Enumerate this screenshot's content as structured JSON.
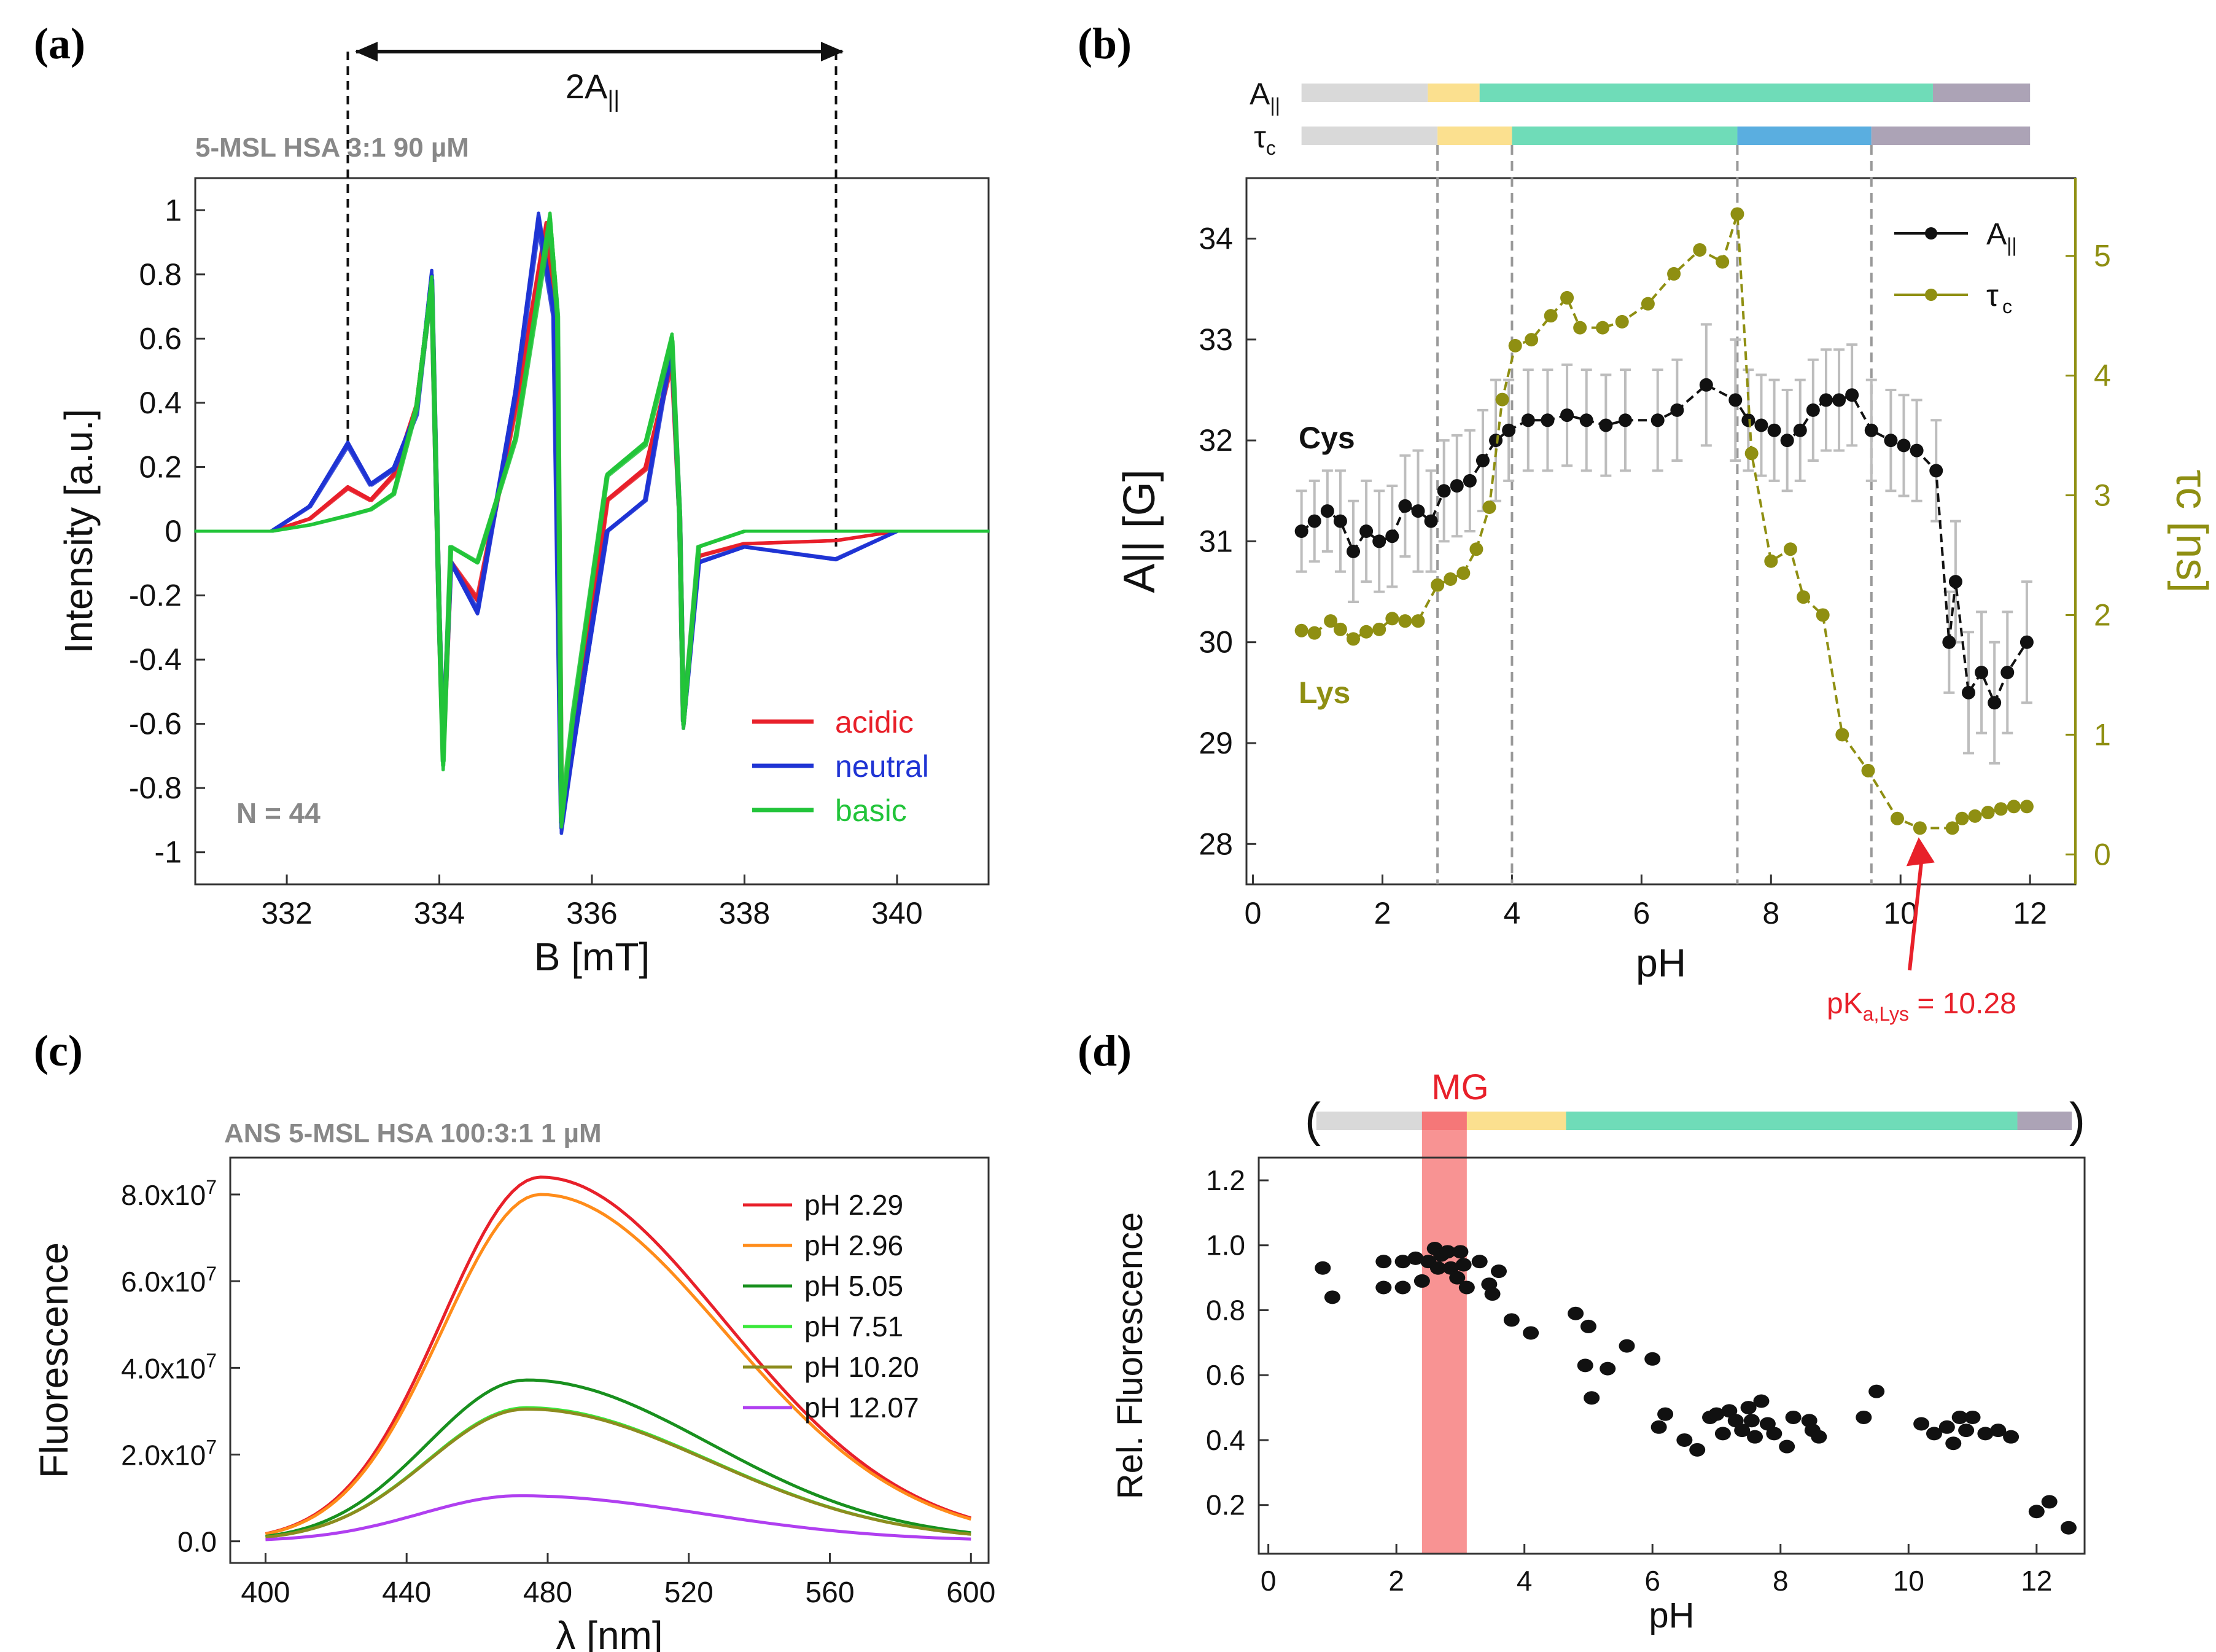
{
  "panel_a": {
    "label": "(a)",
    "annotation": "2A",
    "annotation_sub": "||",
    "sample": "5-MSL HSA 3:1  90 µM",
    "count": "N = 44"
  },
  "panel_b": {
    "label": "(b)",
    "bar_label_a": "A",
    "bar_label_a_sub": "||",
    "bar_label_t": "τ",
    "bar_label_t_sub": "c",
    "label_cys": "Cys",
    "label_lys": "Lys",
    "pka": "pK",
    "pka_sub": "a,Lys",
    "pka_value": " = 10.28"
  },
  "panel_c": {
    "label": "(c)",
    "sample": "ANS 5-MSL HSA 100:3:1  1 µM"
  },
  "panel_d": {
    "label": "(d)",
    "mg_label": "MG",
    "paren_open": "(",
    "paren_close": ")"
  },
  "colors": {
    "gray": "#d9d9d9",
    "yellow": "#fbe08f",
    "teal": "#6fdcb8",
    "blue": "#5aaee0",
    "purple": "#aca3b6",
    "red": "#e8202a",
    "blue_line": "#1f34d4",
    "green": "#22c43a",
    "olive": "#8f8f12",
    "black": "#111111"
  },
  "chart_data": [
    {
      "id": "a",
      "type": "line",
      "title": "",
      "xlabel": "B [mT]",
      "ylabel": "Intensity [a.u.]",
      "xlim": [
        330.8,
        341.2
      ],
      "ylim": [
        -1.1,
        1.1
      ],
      "xticks": [
        332,
        334,
        336,
        338,
        340
      ],
      "yticks": [
        1,
        0.8,
        0.6,
        0.4,
        0.2,
        0,
        -0.2,
        -0.4,
        -0.6,
        -0.8,
        -1
      ],
      "legend": [
        "acidic",
        "neutral",
        "basic"
      ],
      "legend_position": "bottom-right",
      "dashed_markers_x": [
        332.8,
        339.2
      ],
      "series": [
        {
          "name": "acidic",
          "color": "#e8202a",
          "points": [
            [
              330.8,
              0.0
            ],
            [
              331.8,
              0.0
            ],
            [
              332.3,
              0.04
            ],
            [
              332.8,
              0.14
            ],
            [
              333.1,
              0.1
            ],
            [
              333.4,
              0.18
            ],
            [
              333.7,
              0.4
            ],
            [
              333.9,
              0.8
            ],
            [
              334.0,
              -0.3
            ],
            [
              334.05,
              -0.72
            ],
            [
              334.15,
              -0.1
            ],
            [
              334.5,
              -0.22
            ],
            [
              335.0,
              0.4
            ],
            [
              335.4,
              0.97
            ],
            [
              335.55,
              0.6
            ],
            [
              335.6,
              -0.93
            ],
            [
              335.75,
              -0.7
            ],
            [
              336.2,
              0.1
            ],
            [
              336.7,
              0.2
            ],
            [
              337.05,
              0.55
            ],
            [
              337.15,
              0.05
            ],
            [
              337.2,
              -0.62
            ],
            [
              337.4,
              -0.08
            ],
            [
              338.0,
              -0.04
            ],
            [
              339.2,
              -0.03
            ],
            [
              340.0,
              0.0
            ],
            [
              341.2,
              0.0
            ]
          ]
        },
        {
          "name": "neutral",
          "color": "#1f34d4",
          "points": [
            [
              330.8,
              0.0
            ],
            [
              331.8,
              0.0
            ],
            [
              332.3,
              0.08
            ],
            [
              332.8,
              0.28
            ],
            [
              333.1,
              0.15
            ],
            [
              333.4,
              0.2
            ],
            [
              333.7,
              0.38
            ],
            [
              333.9,
              0.82
            ],
            [
              334.0,
              -0.3
            ],
            [
              334.05,
              -0.7
            ],
            [
              334.15,
              -0.1
            ],
            [
              334.5,
              -0.26
            ],
            [
              335.0,
              0.45
            ],
            [
              335.3,
              1.0
            ],
            [
              335.5,
              0.7
            ],
            [
              335.6,
              -0.95
            ],
            [
              335.75,
              -0.7
            ],
            [
              336.2,
              0.0
            ],
            [
              336.7,
              0.1
            ],
            [
              337.05,
              0.6
            ],
            [
              337.15,
              0.05
            ],
            [
              337.2,
              -0.62
            ],
            [
              337.4,
              -0.1
            ],
            [
              338.0,
              -0.05
            ],
            [
              339.2,
              -0.09
            ],
            [
              340.0,
              0.0
            ],
            [
              341.2,
              0.0
            ]
          ]
        },
        {
          "name": "basic",
          "color": "#22c43a",
          "points": [
            [
              330.8,
              0.0
            ],
            [
              331.8,
              0.0
            ],
            [
              332.3,
              0.02
            ],
            [
              332.8,
              0.05
            ],
            [
              333.1,
              0.07
            ],
            [
              333.4,
              0.12
            ],
            [
              333.7,
              0.4
            ],
            [
              333.9,
              0.8
            ],
            [
              334.0,
              -0.3
            ],
            [
              334.05,
              -0.75
            ],
            [
              334.15,
              -0.05
            ],
            [
              334.5,
              -0.1
            ],
            [
              335.0,
              0.3
            ],
            [
              335.45,
              1.0
            ],
            [
              335.55,
              0.7
            ],
            [
              335.6,
              -0.93
            ],
            [
              335.75,
              -0.6
            ],
            [
              336.2,
              0.18
            ],
            [
              336.7,
              0.28
            ],
            [
              337.05,
              0.62
            ],
            [
              337.15,
              0.05
            ],
            [
              337.2,
              -0.62
            ],
            [
              337.4,
              -0.05
            ],
            [
              338.0,
              0.0
            ],
            [
              339.2,
              0.0
            ],
            [
              340.0,
              0.0
            ],
            [
              341.2,
              0.0
            ]
          ]
        }
      ]
    },
    {
      "id": "b",
      "type": "line",
      "xlabel": "pH",
      "ylabel": "A|| [G]",
      "ylabel2": "τc [ns]",
      "xlim": [
        -0.1,
        12.7
      ],
      "ylim": [
        27.6,
        34.6
      ],
      "ylim2": [
        -0.25,
        5.65
      ],
      "xticks": [
        0,
        2,
        4,
        6,
        8,
        10,
        12
      ],
      "yticks": [
        28,
        29,
        30,
        31,
        32,
        33,
        34
      ],
      "yticks2": [
        0,
        1,
        2,
        3,
        4,
        5
      ],
      "legend": [
        "A||",
        "τc"
      ],
      "legend_position": "top-right",
      "vlines": [
        2.85,
        4.0,
        7.48,
        9.55
      ],
      "series": [
        {
          "name": "A||",
          "axis": "left",
          "color": "#111111",
          "x": [
            0.75,
            0.95,
            1.15,
            1.35,
            1.55,
            1.75,
            1.95,
            2.15,
            2.35,
            2.55,
            2.75,
            2.95,
            3.15,
            3.35,
            3.55,
            3.75,
            3.95,
            4.25,
            4.55,
            4.85,
            5.15,
            5.45,
            5.75,
            6.25,
            6.55,
            7.0,
            7.45,
            7.65,
            7.85,
            8.05,
            8.25,
            8.45,
            8.65,
            8.85,
            9.05,
            9.25,
            9.55,
            9.85,
            10.05,
            10.25,
            10.55,
            10.75,
            10.85,
            11.05,
            11.25,
            11.45,
            11.65,
            11.95
          ],
          "y": [
            31.1,
            31.2,
            31.3,
            31.2,
            30.9,
            31.1,
            31.0,
            31.05,
            31.35,
            31.3,
            31.2,
            31.5,
            31.55,
            31.6,
            31.8,
            32.0,
            32.1,
            32.2,
            32.2,
            32.25,
            32.2,
            32.15,
            32.2,
            32.2,
            32.3,
            32.55,
            32.4,
            32.2,
            32.15,
            32.1,
            32.0,
            32.1,
            32.3,
            32.4,
            32.4,
            32.45,
            32.1,
            32.0,
            31.95,
            31.9,
            31.7,
            30.0,
            30.6,
            29.5,
            29.7,
            29.4,
            29.7,
            30.0
          ],
          "yerr": [
            0.4,
            0.4,
            0.4,
            0.5,
            0.5,
            0.5,
            0.5,
            0.5,
            0.5,
            0.6,
            0.5,
            0.5,
            0.5,
            0.5,
            0.5,
            0.6,
            0.5,
            0.5,
            0.5,
            0.5,
            0.5,
            0.5,
            0.5,
            0.5,
            0.5,
            0.6,
            0.6,
            0.5,
            0.5,
            0.5,
            0.5,
            0.5,
            0.5,
            0.5,
            0.5,
            0.5,
            0.5,
            0.5,
            0.5,
            0.5,
            0.5,
            0.5,
            0.6,
            0.6,
            0.6,
            0.6,
            0.6,
            0.6
          ]
        },
        {
          "name": "τc",
          "axis": "right",
          "color": "#8f8f12",
          "x": [
            0.75,
            0.95,
            1.2,
            1.35,
            1.55,
            1.75,
            1.95,
            2.15,
            2.35,
            2.55,
            2.85,
            3.05,
            3.25,
            3.45,
            3.65,
            3.85,
            4.05,
            4.3,
            4.6,
            4.85,
            5.05,
            5.4,
            5.7,
            6.1,
            6.5,
            6.9,
            7.25,
            7.48,
            7.7,
            8.0,
            8.3,
            8.5,
            8.8,
            9.1,
            9.5,
            9.95,
            10.3,
            10.8,
            10.95,
            11.15,
            11.35,
            11.55,
            11.75,
            11.95
          ],
          "y": [
            1.87,
            1.85,
            1.95,
            1.88,
            1.8,
            1.86,
            1.88,
            1.97,
            1.95,
            1.95,
            2.25,
            2.3,
            2.35,
            2.55,
            2.9,
            3.8,
            4.25,
            4.3,
            4.5,
            4.65,
            4.4,
            4.4,
            4.45,
            4.6,
            4.85,
            5.05,
            4.95,
            5.35,
            3.35,
            2.45,
            2.55,
            2.15,
            2.0,
            1.0,
            0.7,
            0.3,
            0.22,
            0.22,
            0.3,
            0.32,
            0.35,
            0.38,
            0.4,
            0.4
          ]
        }
      ],
      "annotation": {
        "x": 10.28,
        "text": "pKa,Lys = 10.28"
      }
    },
    {
      "id": "c",
      "type": "line",
      "xlabel": "λ  [nm]",
      "ylabel": "Fluorescence",
      "xlim": [
        390,
        605
      ],
      "ylim": [
        -5000000.0,
        88500000.0
      ],
      "xticks": [
        400,
        440,
        480,
        520,
        560,
        600
      ],
      "ytick_labels": [
        "0.0",
        "2.0x10^7",
        "4.0x10^7",
        "6.0x10^7",
        "8.0x10^7"
      ],
      "yticks": [
        0,
        20000000.0,
        40000000.0,
        60000000.0,
        80000000.0
      ],
      "legend": [
        "pH 2.29",
        "pH 2.96",
        "pH 5.05",
        "pH 7.51",
        "pH 10.20",
        "pH 12.07"
      ],
      "legend_position": "top-right",
      "series": [
        {
          "name": "pH 2.29",
          "color": "#e8202a",
          "peak": 84000000.0,
          "center": 478
        },
        {
          "name": "pH 2.96",
          "color": "#ff8c1a",
          "peak": 80000000.0,
          "center": 478
        },
        {
          "name": "pH 5.05",
          "color": "#18901e",
          "peak": 37200000.0,
          "center": 474
        },
        {
          "name": "pH 7.51",
          "color": "#3ae83a",
          "peak": 30800000.0,
          "center": 474
        },
        {
          "name": "pH 10.20",
          "color": "#8c8c1e",
          "peak": 30500000.0,
          "center": 474
        },
        {
          "name": "pH 12.07",
          "color": "#b03ff0",
          "peak": 10500000.0,
          "center": 472
        }
      ]
    },
    {
      "id": "d",
      "type": "scatter",
      "xlabel": "pH",
      "ylabel": "Rel. Fluorescence",
      "xlim": [
        -0.15,
        12.75
      ],
      "ylim": [
        0.05,
        1.27
      ],
      "xticks": [
        0,
        2,
        4,
        6,
        8,
        10,
        12
      ],
      "yticks": [
        0.2,
        0.4,
        0.6,
        0.8,
        1.0,
        1.2
      ],
      "highlight_range": [
        2.4,
        3.1
      ],
      "points": [
        [
          0.85,
          0.93
        ],
        [
          1.0,
          0.84
        ],
        [
          1.8,
          0.87
        ],
        [
          1.8,
          0.95
        ],
        [
          2.1,
          0.87
        ],
        [
          2.1,
          0.95
        ],
        [
          2.3,
          0.96
        ],
        [
          2.4,
          0.89
        ],
        [
          2.5,
          0.95
        ],
        [
          2.6,
          0.99
        ],
        [
          2.65,
          0.93
        ],
        [
          2.7,
          0.97
        ],
        [
          2.8,
          0.98
        ],
        [
          2.85,
          0.93
        ],
        [
          2.95,
          0.9
        ],
        [
          3.0,
          0.98
        ],
        [
          3.05,
          0.94
        ],
        [
          3.1,
          0.87
        ],
        [
          3.3,
          0.95
        ],
        [
          3.45,
          0.88
        ],
        [
          3.5,
          0.85
        ],
        [
          3.6,
          0.92
        ],
        [
          3.8,
          0.77
        ],
        [
          4.1,
          0.73
        ],
        [
          4.8,
          0.79
        ],
        [
          4.95,
          0.63
        ],
        [
          5.0,
          0.75
        ],
        [
          5.05,
          0.53
        ],
        [
          5.3,
          0.62
        ],
        [
          5.6,
          0.69
        ],
        [
          6.0,
          0.65
        ],
        [
          6.1,
          0.44
        ],
        [
          6.2,
          0.48
        ],
        [
          6.5,
          0.4
        ],
        [
          6.7,
          0.37
        ],
        [
          6.9,
          0.47
        ],
        [
          7.0,
          0.48
        ],
        [
          7.1,
          0.42
        ],
        [
          7.2,
          0.49
        ],
        [
          7.3,
          0.46
        ],
        [
          7.4,
          0.43
        ],
        [
          7.5,
          0.5
        ],
        [
          7.55,
          0.46
        ],
        [
          7.6,
          0.41
        ],
        [
          7.7,
          0.52
        ],
        [
          7.8,
          0.45
        ],
        [
          7.9,
          0.42
        ],
        [
          8.1,
          0.38
        ],
        [
          8.2,
          0.47
        ],
        [
          8.45,
          0.46
        ],
        [
          8.5,
          0.43
        ],
        [
          8.6,
          0.41
        ],
        [
          9.3,
          0.47
        ],
        [
          9.5,
          0.55
        ],
        [
          10.2,
          0.45
        ],
        [
          10.4,
          0.42
        ],
        [
          10.6,
          0.44
        ],
        [
          10.7,
          0.39
        ],
        [
          10.8,
          0.47
        ],
        [
          10.9,
          0.43
        ],
        [
          11.0,
          0.47
        ],
        [
          11.2,
          0.42
        ],
        [
          11.4,
          0.43
        ],
        [
          11.6,
          0.41
        ],
        [
          12.0,
          0.18
        ],
        [
          12.2,
          0.21
        ],
        [
          12.5,
          0.13
        ]
      ]
    }
  ]
}
